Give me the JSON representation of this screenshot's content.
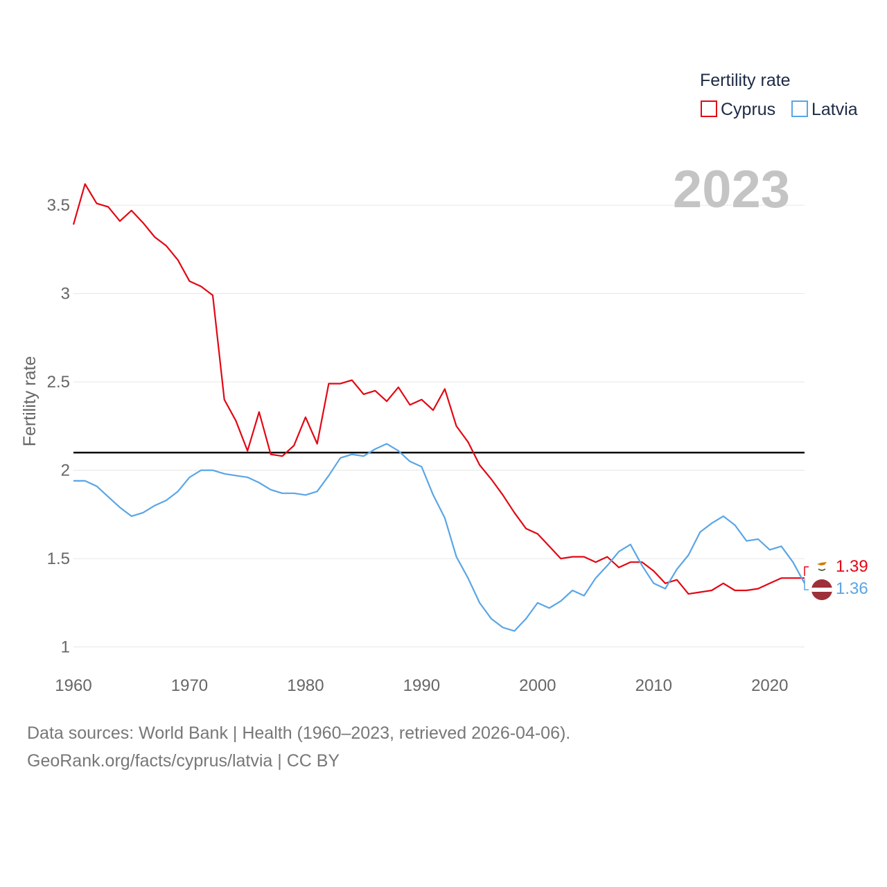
{
  "chart_data": {
    "type": "line",
    "ylabel": "Fertility rate",
    "xlabel": "",
    "xlim": [
      1960,
      2023
    ],
    "ylim": [
      0.92,
      3.72
    ],
    "xticks": [
      "1960",
      "1970",
      "1980",
      "1990",
      "2000",
      "2010",
      "2020"
    ],
    "yticks": [
      "1",
      "1.5",
      "2",
      "2.5",
      "3",
      "3.5"
    ],
    "grid": true,
    "legend": {
      "title": "Fertility rate",
      "position": "top-right"
    },
    "year_label": "2023",
    "reference_line": {
      "y": 2.1,
      "color": "#000000"
    },
    "x": [
      1960,
      1961,
      1962,
      1963,
      1964,
      1965,
      1966,
      1967,
      1968,
      1969,
      1970,
      1971,
      1972,
      1973,
      1974,
      1975,
      1976,
      1977,
      1978,
      1979,
      1980,
      1981,
      1982,
      1983,
      1984,
      1985,
      1986,
      1987,
      1988,
      1989,
      1990,
      1991,
      1992,
      1993,
      1994,
      1995,
      1996,
      1997,
      1998,
      1999,
      2000,
      2001,
      2002,
      2003,
      2004,
      2005,
      2006,
      2007,
      2008,
      2009,
      2010,
      2011,
      2012,
      2013,
      2014,
      2015,
      2016,
      2017,
      2018,
      2019,
      2020,
      2021,
      2022,
      2023
    ],
    "series": [
      {
        "name": "Cyprus",
        "color": "#e30613",
        "end_label": "1.39",
        "values": [
          3.39,
          3.62,
          3.51,
          3.49,
          3.41,
          3.47,
          3.4,
          3.32,
          3.27,
          3.19,
          3.07,
          3.04,
          2.99,
          2.4,
          2.28,
          2.11,
          2.33,
          2.09,
          2.08,
          2.14,
          2.3,
          2.15,
          2.49,
          2.49,
          2.51,
          2.43,
          2.45,
          2.39,
          2.47,
          2.37,
          2.4,
          2.34,
          2.46,
          2.25,
          2.16,
          2.03,
          1.95,
          1.86,
          1.76,
          1.67,
          1.64,
          1.57,
          1.5,
          1.51,
          1.51,
          1.48,
          1.51,
          1.45,
          1.48,
          1.48,
          1.43,
          1.36,
          1.38,
          1.3,
          1.31,
          1.32,
          1.36,
          1.32,
          1.32,
          1.33,
          1.36,
          1.39,
          1.39,
          1.39
        ]
      },
      {
        "name": "Latvia",
        "color": "#5aa5e6",
        "end_label": "1.36",
        "values": [
          1.94,
          1.94,
          1.91,
          1.85,
          1.79,
          1.74,
          1.76,
          1.8,
          1.83,
          1.88,
          1.96,
          2.0,
          2.0,
          1.98,
          1.97,
          1.96,
          1.93,
          1.89,
          1.87,
          1.87,
          1.86,
          1.88,
          1.97,
          2.07,
          2.09,
          2.08,
          2.12,
          2.15,
          2.11,
          2.05,
          2.02,
          1.86,
          1.73,
          1.51,
          1.39,
          1.25,
          1.16,
          1.11,
          1.09,
          1.16,
          1.25,
          1.22,
          1.26,
          1.32,
          1.29,
          1.39,
          1.46,
          1.54,
          1.58,
          1.46,
          1.36,
          1.33,
          1.44,
          1.52,
          1.65,
          1.7,
          1.74,
          1.69,
          1.6,
          1.61,
          1.55,
          1.57,
          1.48,
          1.36
        ]
      }
    ]
  },
  "icons": {
    "cyprus_flag": "cyprus-flag-icon",
    "latvia_flag": "latvia-flag-icon"
  },
  "footer": {
    "sources": "Data sources: World Bank | Health (1960–2023, retrieved 2026-04-06).",
    "credit": "GeoRank.org/facts/cyprus/latvia | CC BY"
  }
}
